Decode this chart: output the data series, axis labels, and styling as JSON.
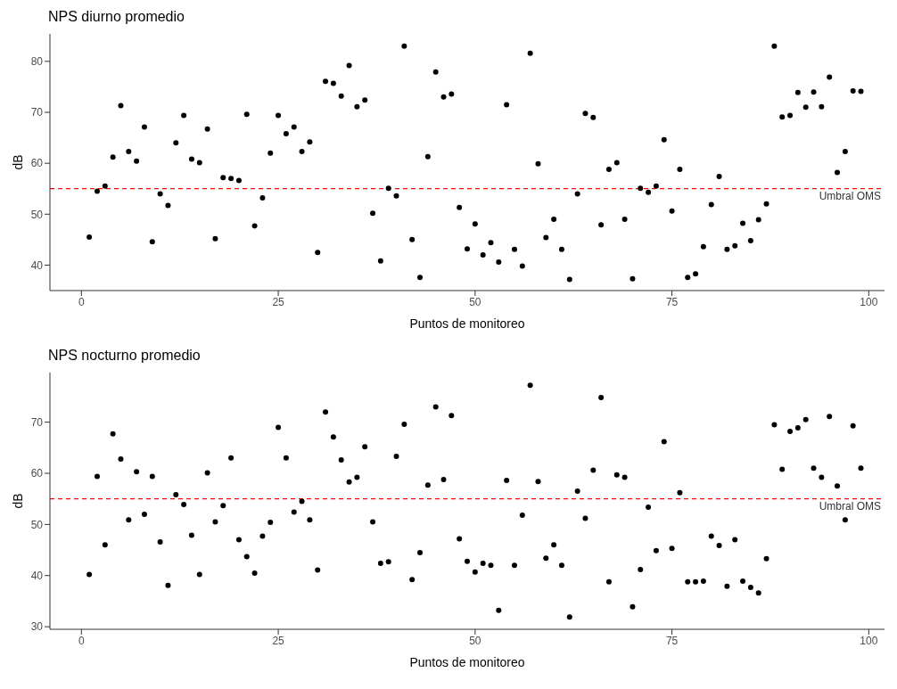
{
  "chart_data": [
    {
      "type": "scatter",
      "title": "NPS diurno promedio",
      "xlabel": "Puntos de monitoreo",
      "ylabel": "dB",
      "color": "#000000",
      "marker": "circle",
      "grid": false,
      "x": [
        1,
        2,
        3,
        4,
        5,
        6,
        7,
        8,
        9,
        10,
        11,
        12,
        13,
        14,
        15,
        16,
        17,
        18,
        19,
        20,
        21,
        22,
        23,
        24,
        25,
        26,
        27,
        28,
        29,
        30,
        31,
        32,
        33,
        34,
        35,
        36,
        37,
        38,
        39,
        40,
        41,
        42,
        43,
        44,
        45,
        46,
        47,
        48,
        49,
        50,
        51,
        52,
        53,
        54,
        55,
        56,
        57,
        58,
        59,
        60,
        61,
        62,
        63,
        64,
        65,
        66,
        67,
        68,
        69,
        70,
        71,
        72,
        73,
        74,
        75,
        76,
        77,
        78,
        79,
        80,
        81,
        82,
        83,
        84,
        85,
        86,
        87,
        88,
        89,
        90,
        91,
        92,
        93,
        94,
        95,
        96,
        97,
        98,
        99
      ],
      "values": [
        45.5,
        54.5,
        55.5,
        61.2,
        71.3,
        62.3,
        60.4,
        67.1,
        44.6,
        54,
        51.7,
        64,
        69.4,
        60.8,
        60.1,
        66.7,
        45.2,
        57.2,
        57,
        56.6,
        69.6,
        47.7,
        53.2,
        62,
        69.4,
        65.8,
        67.1,
        62.3,
        64.2,
        42.5,
        76.1,
        75.7,
        73.2,
        79.2,
        71.1,
        72.4,
        50.2,
        40.8,
        55.1,
        53.6,
        83,
        45,
        37.6,
        61.3,
        77.9,
        73,
        73.6,
        51.3,
        43.2,
        48.1,
        42,
        44.4,
        40.6,
        71.5,
        43.1,
        39.8,
        81.6,
        59.9,
        45.4,
        49,
        43.1,
        37.2,
        54,
        69.8,
        69,
        47.9,
        58.8,
        60.1,
        49,
        37.3,
        55.1,
        54.3,
        55.5,
        64.6,
        50.6,
        58.8,
        37.6,
        38.3,
        43.6,
        51.9,
        57.4,
        43.1,
        43.8,
        48.2,
        44.8,
        48.9,
        52,
        83,
        69.1,
        69.4,
        73.9,
        71,
        74,
        71.1,
        76.9,
        58.2,
        62.3,
        74.2,
        74.1
      ],
      "xlim": [
        -4,
        102
      ],
      "xticks": [
        0,
        25,
        50,
        75,
        100
      ],
      "ylim": [
        35,
        85.4
      ],
      "yticks": [
        40,
        50,
        60,
        70,
        80
      ],
      "ref_lines": [
        {
          "axis": "y",
          "value": 55,
          "label": "Umbral OMS",
          "color": "#ff0000",
          "line_style": "dashed"
        }
      ]
    },
    {
      "type": "scatter",
      "title": "NPS nocturno promedio",
      "xlabel": "Puntos de monitoreo",
      "ylabel": "dB",
      "color": "#000000",
      "marker": "circle",
      "grid": false,
      "x": [
        1,
        2,
        3,
        4,
        5,
        6,
        7,
        8,
        9,
        10,
        11,
        12,
        13,
        14,
        15,
        16,
        17,
        18,
        19,
        20,
        21,
        22,
        23,
        24,
        25,
        26,
        27,
        28,
        29,
        30,
        31,
        32,
        33,
        34,
        35,
        36,
        37,
        38,
        39,
        40,
        41,
        42,
        43,
        44,
        45,
        46,
        47,
        48,
        49,
        50,
        51,
        52,
        53,
        54,
        55,
        56,
        57,
        58,
        59,
        60,
        61,
        62,
        63,
        64,
        65,
        66,
        67,
        68,
        69,
        70,
        71,
        72,
        73,
        74,
        75,
        76,
        77,
        78,
        79,
        80,
        81,
        82,
        83,
        84,
        85,
        86,
        87,
        88,
        89,
        90,
        91,
        92,
        93,
        94,
        95,
        96,
        97,
        98,
        99
      ],
      "values": [
        40.2,
        59.4,
        46,
        67.7,
        62.8,
        50.9,
        60.3,
        52,
        59.4,
        46.6,
        38.1,
        55.8,
        53.9,
        47.9,
        40.2,
        60.1,
        50.5,
        53.7,
        63,
        47,
        43.7,
        40.5,
        47.7,
        50.4,
        69,
        63,
        52.4,
        54.5,
        50.9,
        41.1,
        72,
        67.1,
        62.6,
        58.3,
        59.2,
        65.2,
        50.5,
        42.4,
        42.7,
        63.3,
        69.6,
        39.2,
        44.5,
        57.7,
        73,
        58.8,
        71.3,
        47.2,
        42.8,
        40.7,
        42.4,
        42,
        33.2,
        58.6,
        42,
        51.8,
        77.2,
        58.4,
        43.4,
        46,
        42,
        31.9,
        56.5,
        51.2,
        60.6,
        74.8,
        38.8,
        59.7,
        59.2,
        33.9,
        41.2,
        53.4,
        44.9,
        66.2,
        45.3,
        56.2,
        38.8,
        38.8,
        38.9,
        47.7,
        45.9,
        37.9,
        47,
        38.9,
        37.7,
        36.6,
        43.3,
        69.5,
        60.8,
        68.2,
        68.9,
        70.5,
        61,
        59.2,
        71.1,
        57.5,
        50.9,
        69.3,
        61
      ],
      "xlim": [
        -4,
        102
      ],
      "xticks": [
        0,
        25,
        50,
        75,
        100
      ],
      "ylim": [
        29.5,
        79.7
      ],
      "yticks": [
        30,
        40,
        50,
        60,
        70
      ],
      "ref_lines": [
        {
          "axis": "y",
          "value": 55,
          "label": "Umbral OMS",
          "color": "#ff0000",
          "line_style": "dashed"
        }
      ]
    }
  ]
}
